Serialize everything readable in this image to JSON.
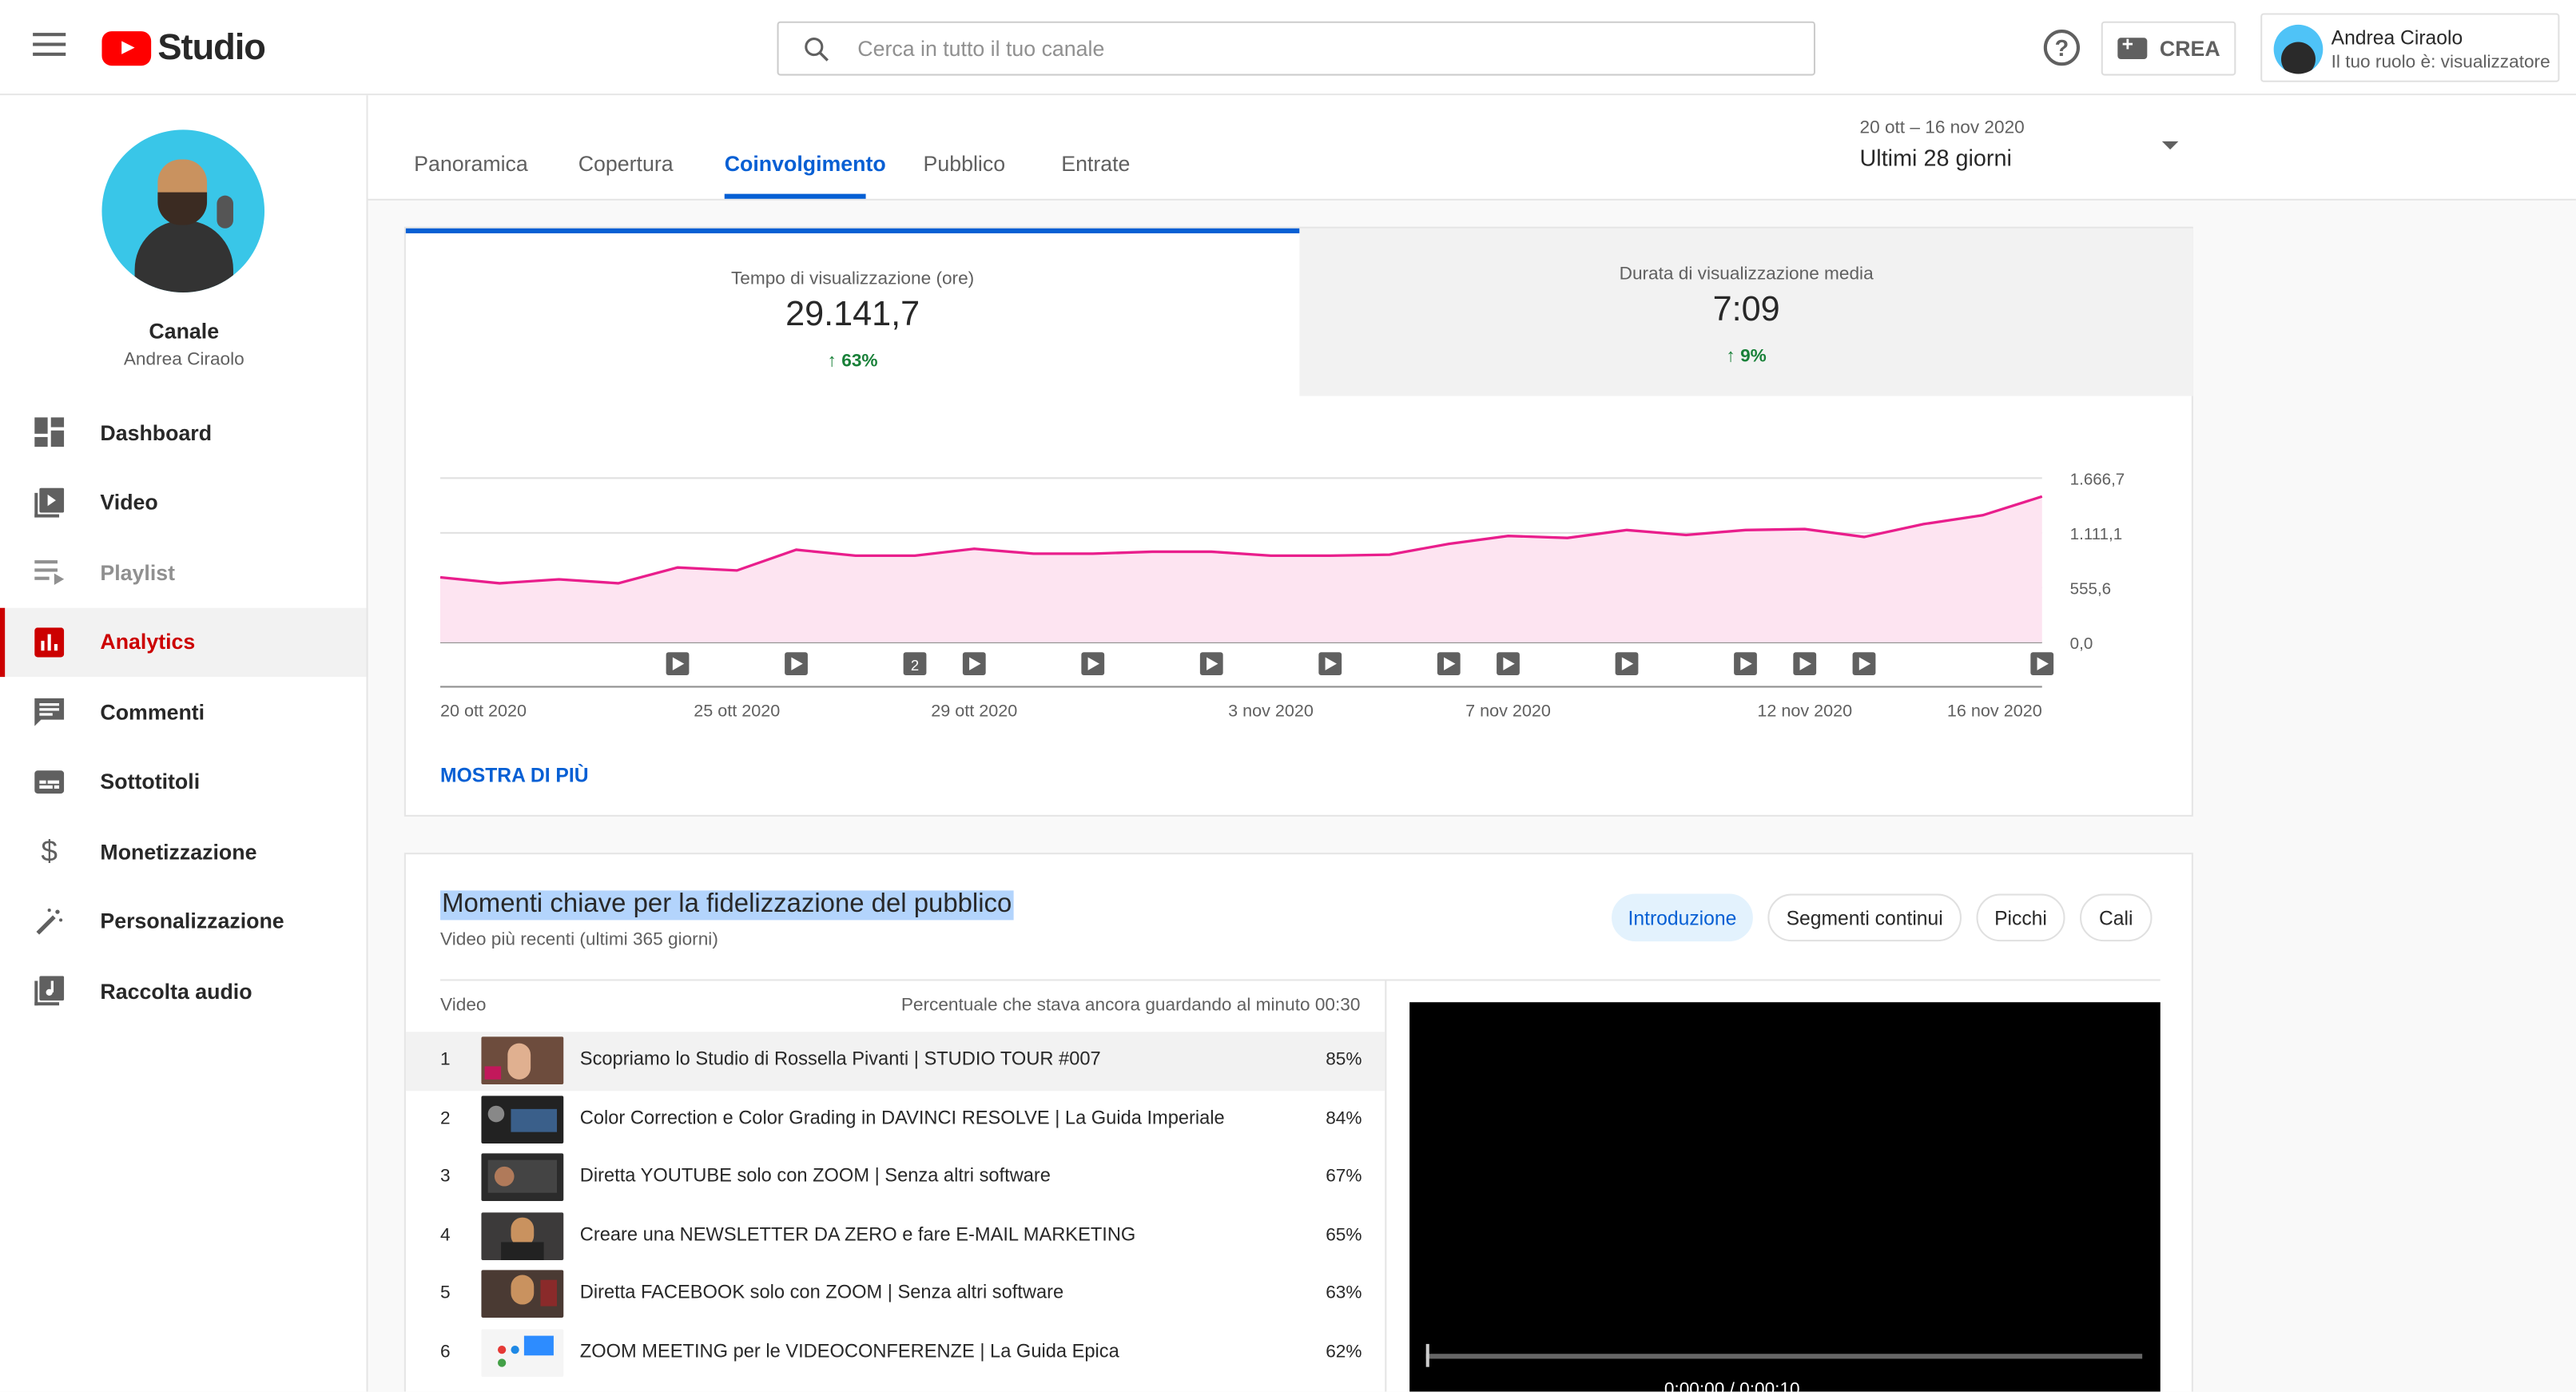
{
  "header": {
    "logo_text": "Studio",
    "search_placeholder": "Cerca in tutto il tuo canale",
    "help_glyph": "?",
    "create_label": "CREA",
    "account_name": "Andrea Ciraolo",
    "account_role": "Il tuo ruolo è: visualizzatore"
  },
  "sidebar": {
    "channel_label": "Canale",
    "channel_name": "Andrea Ciraolo",
    "items": [
      {
        "label": "Dashboard",
        "icon": "dashboard-icon"
      },
      {
        "label": "Video",
        "icon": "video-library-icon"
      },
      {
        "label": "Playlist",
        "icon": "playlist-icon"
      },
      {
        "label": "Analytics",
        "icon": "analytics-icon"
      },
      {
        "label": "Commenti",
        "icon": "comments-icon"
      },
      {
        "label": "Sottotitoli",
        "icon": "subtitles-icon"
      },
      {
        "label": "Monetizzazione",
        "icon": "dollar-icon"
      },
      {
        "label": "Personalizzazione",
        "icon": "magic-wand-icon"
      },
      {
        "label": "Raccolta audio",
        "icon": "audio-library-icon"
      }
    ]
  },
  "tabs": [
    "Panoramica",
    "Copertura",
    "Coinvolgimento",
    "Pubblico",
    "Entrate"
  ],
  "date_picker": {
    "range": "20 ott – 16 nov 2020",
    "period": "Ultimi 28 giorni"
  },
  "metrics": [
    {
      "title": "Tempo di visualizzazione (ore)",
      "value": "29.141,7",
      "delta": "63%"
    },
    {
      "title": "Durata di visualizzazione media",
      "value": "7:09",
      "delta": "9%"
    }
  ],
  "more_link": "MOSTRA DI PIÙ",
  "colors": {
    "accent": "#065fd4",
    "series": "#e91e8c",
    "fill": "#fde4f1",
    "positive": "#188038",
    "active_nav": "#cc0000"
  },
  "chart_data": {
    "type": "area",
    "series": [
      {
        "values": [
          660,
          600,
          640,
          600,
          760,
          730,
          940,
          880,
          880,
          950,
          900,
          900,
          920,
          920,
          880,
          880,
          890,
          1000,
          1080,
          1060,
          1140,
          1090,
          1140,
          1150,
          1070,
          1200,
          1290,
          1480
        ]
      }
    ],
    "x_tick_labels": [
      "20 ott 2020",
      "25 ott 2020",
      "29 ott 2020",
      "3 nov 2020",
      "7 nov 2020",
      "12 nov 2020",
      "16 nov 2020"
    ],
    "y_tick_labels": [
      "1.666,7",
      "1.111,1",
      "555,6",
      "0,0"
    ],
    "ylim": [
      0,
      1666.7
    ],
    "grid": true,
    "video_markers": [
      {
        "day": 5,
        "label": ""
      },
      {
        "day": 7,
        "label": ""
      },
      {
        "day": 9,
        "label": "2"
      },
      {
        "day": 10,
        "label": ""
      },
      {
        "day": 12,
        "label": ""
      },
      {
        "day": 14,
        "label": ""
      },
      {
        "day": 16,
        "label": ""
      },
      {
        "day": 18,
        "label": ""
      },
      {
        "day": 19,
        "label": ""
      },
      {
        "day": 21,
        "label": ""
      },
      {
        "day": 23,
        "label": ""
      },
      {
        "day": 24,
        "label": ""
      },
      {
        "day": 25,
        "label": ""
      },
      {
        "day": 28,
        "label": ""
      }
    ]
  },
  "retention": {
    "title": "Momenti chiave per la fidelizzazione del pubblico",
    "subtitle": "Video più recenti (ultimi 365 giorni)",
    "chips": [
      "Introduzione",
      "Segmenti continui",
      "Picchi",
      "Cali"
    ],
    "col_video": "Video",
    "col_pct": "Percentuale che stava ancora guardando al minuto 00:30",
    "rows": [
      {
        "num": "1",
        "title": "Scopriamo lo Studio di Rossella Pivanti | STUDIO TOUR #007",
        "pct": "85%"
      },
      {
        "num": "2",
        "title": "Color Correction e Color Grading in DAVINCI RESOLVE | La Guida Imperiale",
        "pct": "84%"
      },
      {
        "num": "3",
        "title": "Diretta YOUTUBE solo con ZOOM | Senza altri software",
        "pct": "67%"
      },
      {
        "num": "4",
        "title": "Creare una NEWSLETTER DA ZERO e fare E-MAIL MARKETING",
        "pct": "65%"
      },
      {
        "num": "5",
        "title": "Diretta FACEBOOK solo con ZOOM | Senza altri software",
        "pct": "63%"
      },
      {
        "num": "6",
        "title": "ZOOM MEETING per le VIDEOCONFERENZE | La Guida Epica",
        "pct": "62%"
      }
    ],
    "player_time": "0:00:00 / 0:00:10"
  }
}
